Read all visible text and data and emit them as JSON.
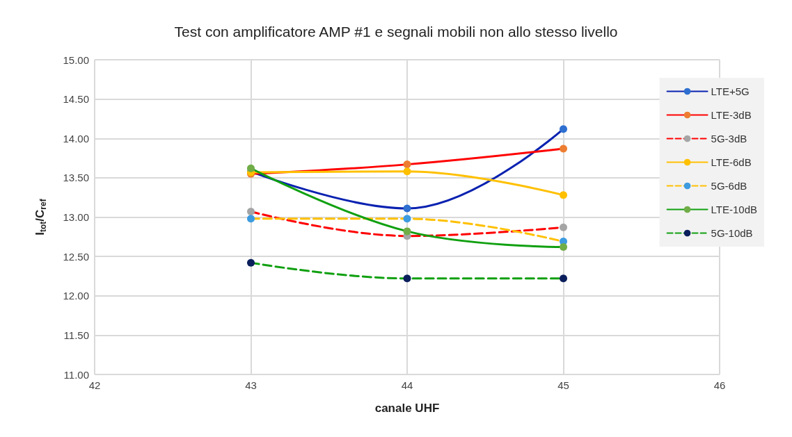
{
  "chart_data": {
    "type": "line",
    "title": "Test con amplificatore AMP #1 e segnali mobili non allo stesso livello",
    "xlabel": "canale UHF",
    "ylabel": "I$_{tot}$/C$_{ref}$",
    "x": [
      43,
      44,
      45
    ],
    "xlim": [
      42,
      46
    ],
    "xticks": [
      42,
      43,
      44,
      45,
      46
    ],
    "ylim": [
      11,
      15
    ],
    "yticks": [
      {
        "value": 11,
        "label": "11.00"
      },
      {
        "value": 11.5,
        "label": "11.50"
      },
      {
        "value": 12,
        "label": "12.00"
      },
      {
        "value": 12.5,
        "label": "12.50"
      },
      {
        "value": 13,
        "label": "13.00"
      },
      {
        "value": 13.5,
        "label": "13.50"
      },
      {
        "value": 14,
        "label": "14.00"
      },
      {
        "value": 14.5,
        "label": "14.50"
      },
      {
        "value": 15,
        "label": "15.00"
      }
    ],
    "grid": true,
    "legend": "right",
    "marker": "circle",
    "series": [
      {
        "name": "LTE+5G",
        "color": "#0a22b0",
        "colors": [
          "#2e6fd0",
          "#2e6fd0",
          "#2e6fd0"
        ],
        "values": [
          13.58,
          13.11,
          14.12
        ],
        "line_style": "solid"
      },
      {
        "name": "LTE-3dB",
        "color": "#ff0000",
        "colors": [
          "#ed7d31",
          "#ed7d31",
          "#ed7d31"
        ],
        "values": [
          13.55,
          13.67,
          13.87
        ],
        "line_style": "solid"
      },
      {
        "name": "5G-3dB",
        "color": "#ff0000",
        "colors": [
          "#a5a5a5",
          "#a5a5a5",
          "#a5a5a5"
        ],
        "values": [
          13.07,
          12.76,
          12.87
        ],
        "line_style": "dashed"
      },
      {
        "name": "LTE-6dB",
        "color": "#ffc000",
        "colors": [
          "#ffc000",
          "#ffc000",
          "#ffc000"
        ],
        "values": [
          13.57,
          13.58,
          13.28
        ],
        "line_style": "solid"
      },
      {
        "name": "5G-6dB",
        "color": "#ffc000",
        "colors": [
          "#3d9be0",
          "#3d9be0",
          "#3d9be0"
        ],
        "values": [
          12.98,
          12.98,
          12.69
        ],
        "line_style": "dashed"
      },
      {
        "name": "LTE-10dB",
        "color": "#10a010",
        "colors": [
          "#70ad47",
          "#70ad47",
          "#70ad47"
        ],
        "values": [
          13.62,
          12.82,
          12.62
        ],
        "line_style": "solid"
      },
      {
        "name": "5G-10dB",
        "color": "#10a010",
        "colors": [
          "#0b1f5c",
          "#0b1f5c",
          "#0b1f5c"
        ],
        "values": [
          12.42,
          12.22,
          12.22
        ],
        "line_style": "dashed"
      }
    ]
  }
}
